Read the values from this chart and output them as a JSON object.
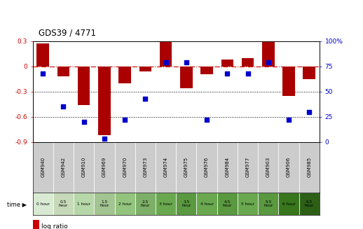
{
  "title": "GDS39 / 4771",
  "samples": [
    "GSM940",
    "GSM942",
    "GSM910",
    "GSM969",
    "GSM970",
    "GSM973",
    "GSM974",
    "GSM975",
    "GSM976",
    "GSM984",
    "GSM977",
    "GSM903",
    "GSM906",
    "GSM985"
  ],
  "time_labels": [
    "0 hour",
    "0.5\nhour",
    "1 hour",
    "1.5\nhour",
    "2 hour",
    "2.5\nhour",
    "3 hour",
    "3.5\nhour",
    "4 hour",
    "4.5\nhour",
    "5 hour",
    "5.5\nhour",
    "6 hour",
    "6.5\nhour"
  ],
  "time_colors": [
    "#d9ead3",
    "#c6d9b8",
    "#b6d7a8",
    "#a2c490",
    "#93c47d",
    "#7daf68",
    "#6aa84f",
    "#5a9940",
    "#6aa84f",
    "#5a9940",
    "#6aa84f",
    "#5a9940",
    "#38761d",
    "#2d6016"
  ],
  "log_ratio": [
    0.27,
    -0.12,
    -0.46,
    -0.82,
    -0.2,
    -0.06,
    0.3,
    -0.26,
    -0.09,
    0.08,
    0.1,
    0.3,
    -0.35,
    -0.15
  ],
  "percentile": [
    68,
    35,
    20,
    3,
    22,
    43,
    79,
    79,
    22,
    68,
    68,
    79,
    22,
    30
  ],
  "ylim_left": [
    -0.9,
    0.3
  ],
  "ylim_right": [
    0,
    100
  ],
  "bar_color": "#aa0000",
  "dot_color": "#0000cc",
  "hline_color": "#cc0000",
  "grid_color": "#000000",
  "sample_bg": "#cccccc",
  "background_color": "#ffffff",
  "left_yticks": [
    0.3,
    0.0,
    -0.3,
    -0.6,
    -0.9
  ],
  "left_yticklabels": [
    "0.3",
    "0",
    "-0.3",
    "-0.6",
    "-0.9"
  ],
  "right_yticks": [
    0,
    25,
    50,
    75,
    100
  ],
  "right_yticklabels": [
    "0",
    "25",
    "50",
    "75",
    "100%"
  ]
}
